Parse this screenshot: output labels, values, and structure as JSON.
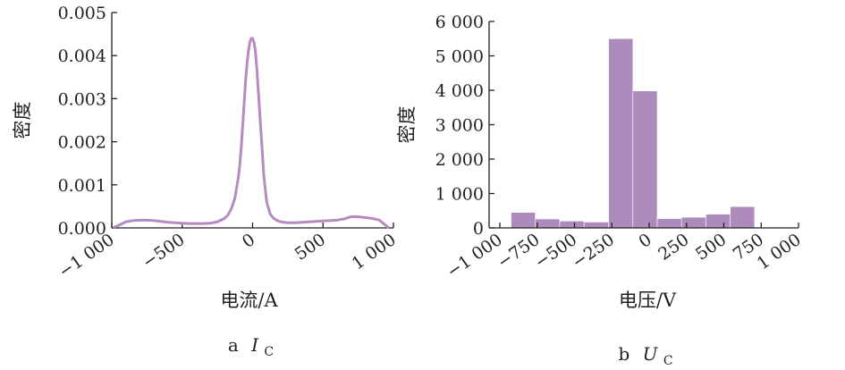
{
  "chart_data": [
    {
      "type": "line",
      "caption_prefix": "a",
      "caption_symbol": "I",
      "caption_subscript": "C",
      "xlabel": "电流/A",
      "ylabel": "密度",
      "xlim": [
        -1000,
        1000
      ],
      "ylim": [
        0,
        0.005
      ],
      "x_ticks": [
        -1000,
        -500,
        0,
        500,
        1000
      ],
      "x_tick_labels": [
        "−1 000",
        "−500",
        "0",
        "500",
        "1 000"
      ],
      "y_ticks": [
        0,
        0.001,
        0.002,
        0.003,
        0.004,
        0.005
      ],
      "y_tick_labels": [
        "0.000",
        "0.001",
        "0.002",
        "0.003",
        "0.004",
        "0.005"
      ],
      "series": [
        {
          "color": "#b58bc0",
          "x": [
            -980,
            -950,
            -900,
            -850,
            -800,
            -750,
            -700,
            -650,
            -600,
            -550,
            -500,
            -450,
            -400,
            -350,
            -300,
            -250,
            -200,
            -175,
            -150,
            -125,
            -100,
            -90,
            -80,
            -70,
            -60,
            -50,
            -40,
            -30,
            -20,
            -10,
            0,
            10,
            20,
            30,
            40,
            50,
            60,
            70,
            80,
            90,
            100,
            125,
            150,
            175,
            200,
            250,
            300,
            350,
            400,
            450,
            500,
            550,
            600,
            650,
            700,
            750,
            800,
            850,
            900,
            930,
            960
          ],
          "y": [
            2e-05,
            6e-05,
            0.00014,
            0.00017,
            0.00018,
            0.00018,
            0.00017,
            0.00015,
            0.00013,
            0.00012,
            0.00011,
            0.0001,
            0.0001,
            0.0001,
            0.00011,
            0.00014,
            0.00022,
            0.0003,
            0.00045,
            0.0007,
            0.0012,
            0.0015,
            0.0019,
            0.0024,
            0.0029,
            0.0034,
            0.0038,
            0.0041,
            0.0043,
            0.0044,
            0.0044,
            0.0043,
            0.0041,
            0.0037,
            0.0032,
            0.0027,
            0.0022,
            0.0017,
            0.0012,
            0.0009,
            0.0006,
            0.00032,
            0.00022,
            0.00017,
            0.00014,
            0.00012,
            0.00012,
            0.00013,
            0.00014,
            0.00015,
            0.00016,
            0.00017,
            0.00018,
            0.00021,
            0.00026,
            0.00026,
            0.00024,
            0.00022,
            0.00018,
            0.0001,
            2e-05
          ]
        }
      ]
    },
    {
      "type": "bar",
      "caption_prefix": "b",
      "caption_symbol": "U",
      "caption_subscript": "C",
      "xlabel": "电压/V",
      "ylabel": "密度",
      "xlim": [
        -1000,
        1000
      ],
      "ylim": [
        0,
        6000
      ],
      "x_ticks": [
        -1000,
        -750,
        -500,
        -250,
        0,
        250,
        500,
        750,
        1000
      ],
      "x_tick_labels": [
        "−1 000",
        "−750",
        "−500",
        "−250",
        "0",
        "250",
        "500",
        "750",
        "1 000"
      ],
      "y_ticks": [
        0,
        1000,
        2000,
        3000,
        4000,
        5000,
        6000
      ],
      "y_tick_labels": [
        "0",
        "1 000",
        "2 000",
        "3 000",
        "4 000",
        "5 000",
        "6 000"
      ],
      "bin_edges": [
        -925,
        -762,
        -599,
        -436,
        -272,
        -109,
        54,
        217,
        380,
        543,
        706,
        869
      ],
      "values": [
        450,
        260,
        200,
        170,
        5500,
        3980,
        270,
        310,
        400,
        620,
        0
      ],
      "color": "#ae8bbd"
    }
  ]
}
